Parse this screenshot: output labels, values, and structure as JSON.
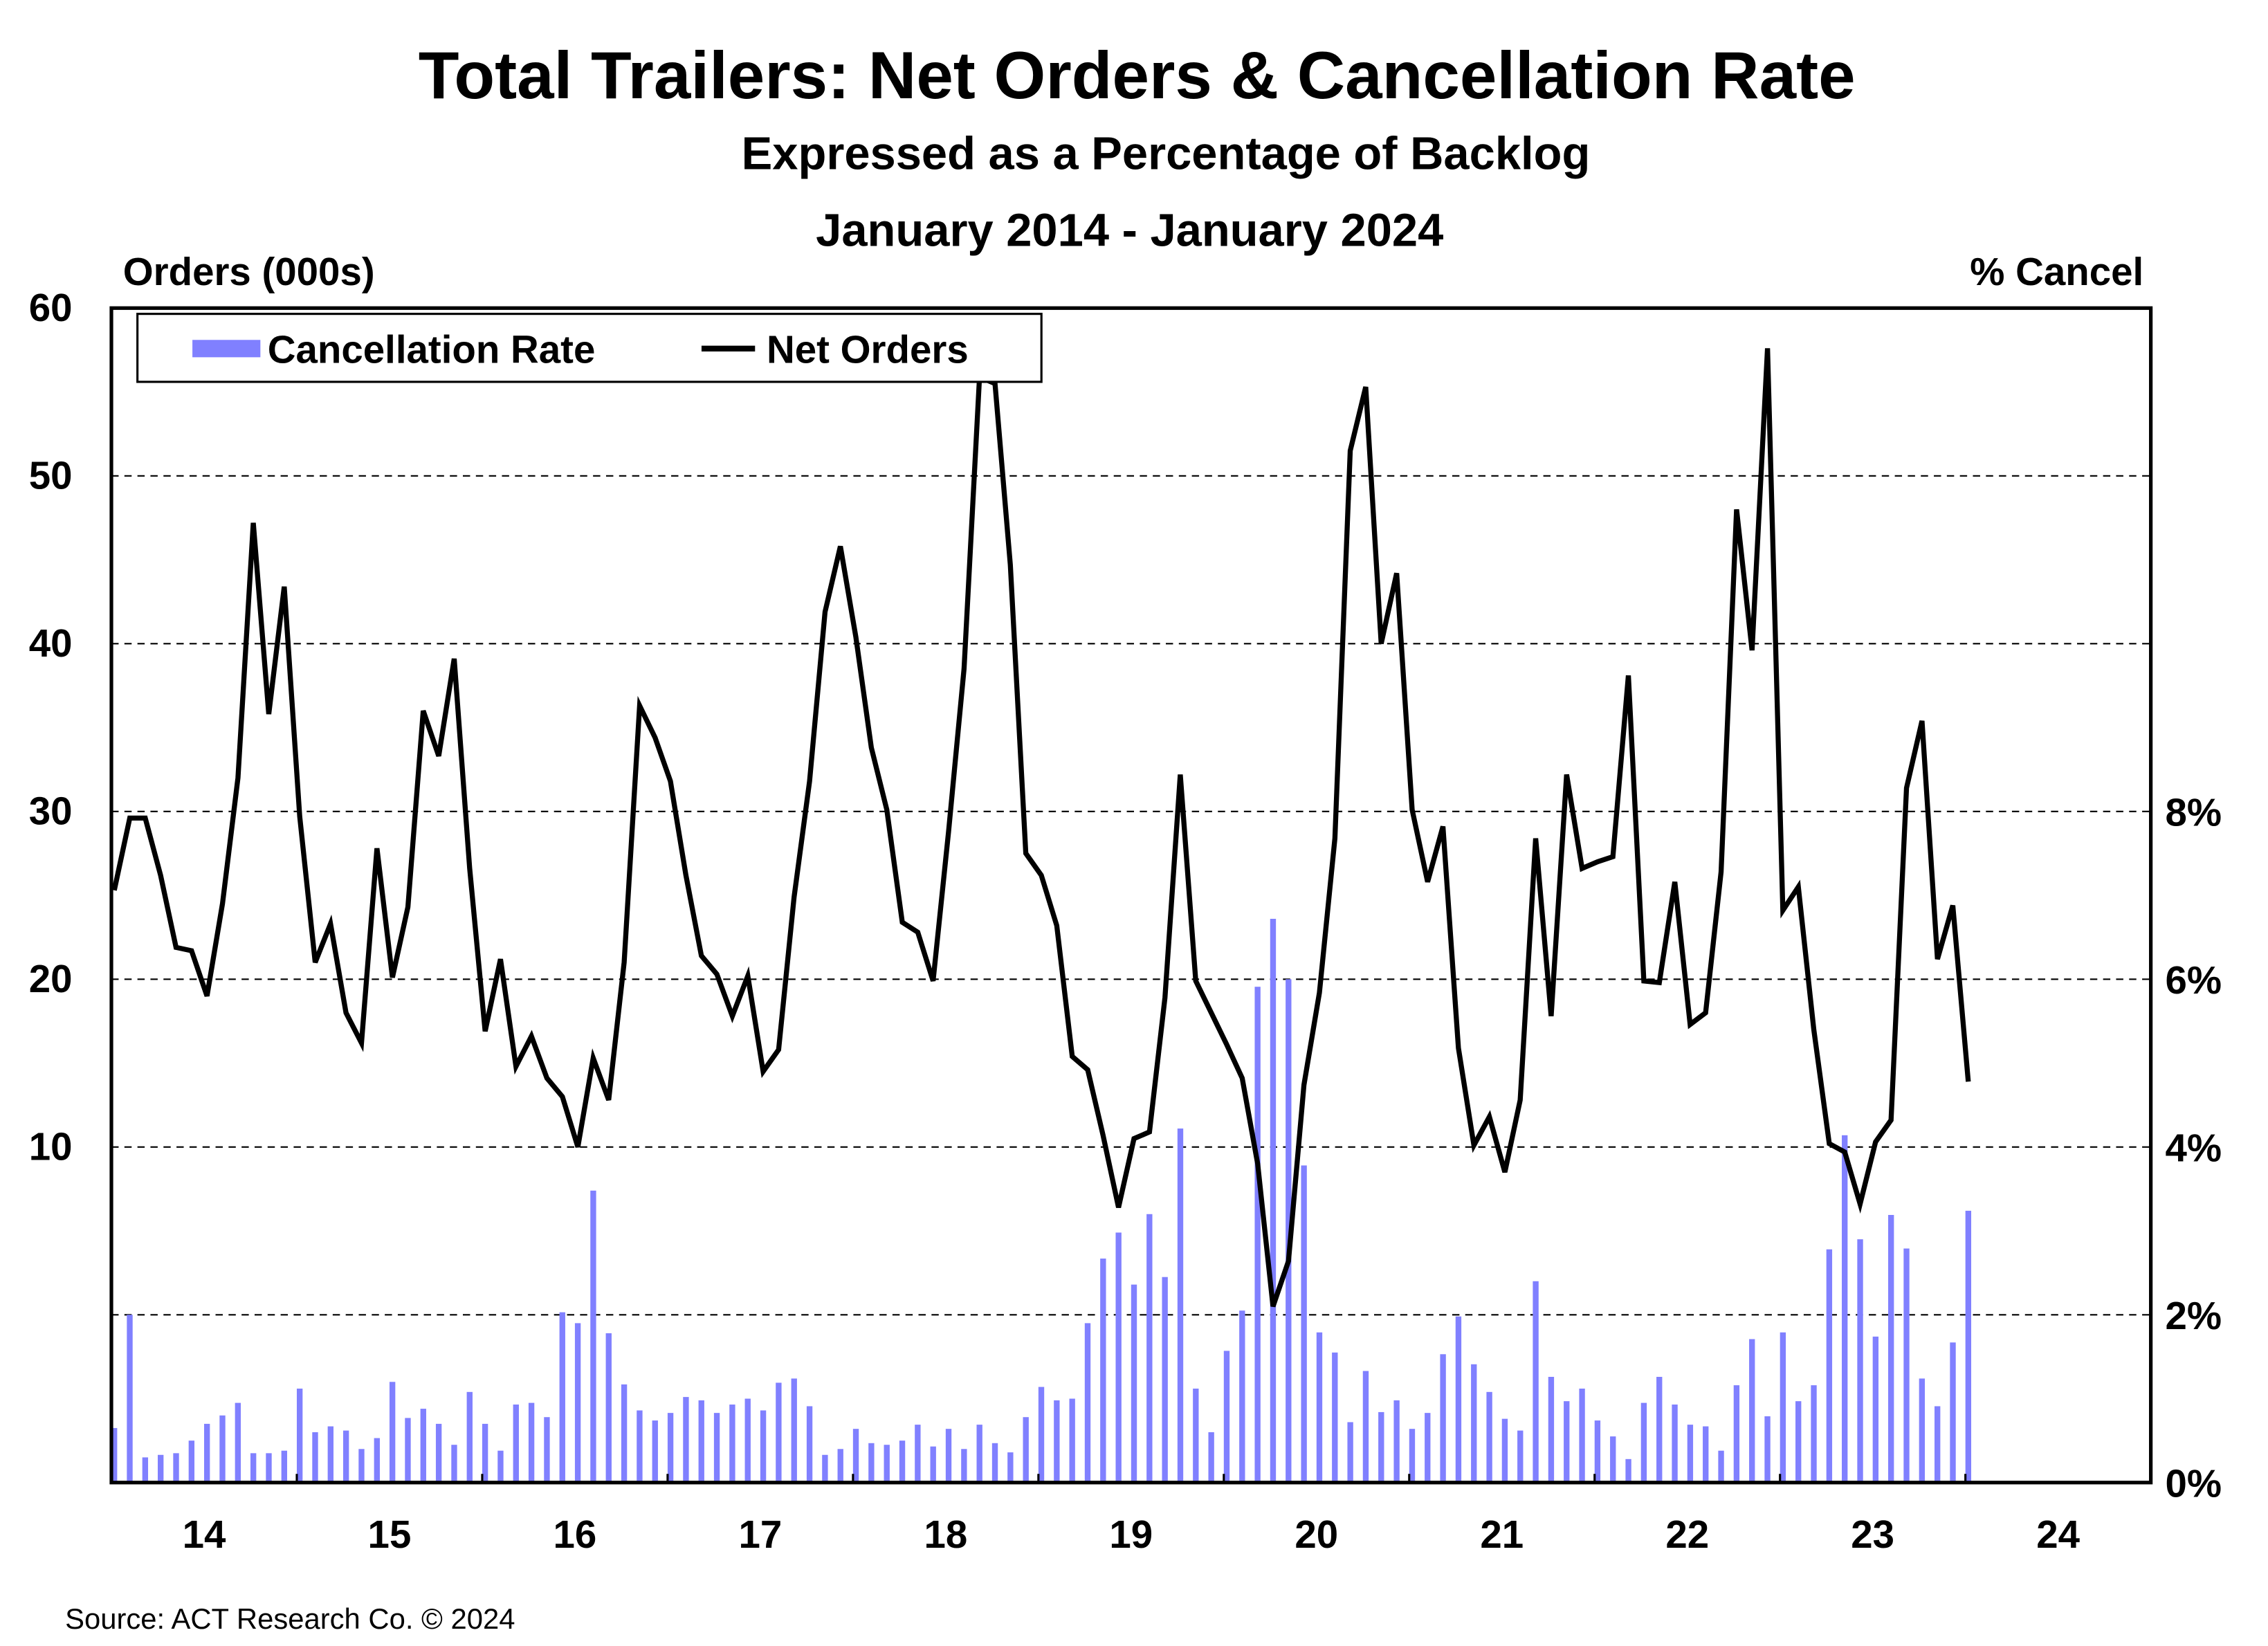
{
  "chart_data": {
    "type": "bar+line",
    "title": "Total Trailers: Net Orders & Cancellation Rate",
    "subtitle": "Expressed as a Percentage of Backlog",
    "date_range": "January 2014 - January 2024",
    "left_axis_label": "Orders (000s)",
    "right_axis_label": "% Cancel",
    "left_ylim": [
      -10,
      60
    ],
    "right_ylim": [
      0,
      14
    ],
    "left_ticks": [
      "60",
      "50",
      "40",
      "30",
      "20",
      "10"
    ],
    "left_tick_values": [
      60,
      50,
      40,
      30,
      20,
      10
    ],
    "right_ticks": [
      "8%",
      "6%",
      "4%",
      "2%",
      "0%"
    ],
    "right_tick_values": [
      8,
      6,
      4,
      2,
      0
    ],
    "x_ticks": [
      "14",
      "15",
      "16",
      "17",
      "18",
      "19",
      "20",
      "21",
      "22",
      "23",
      "24"
    ],
    "x_start": "2014-01",
    "x_end": "2024-12",
    "frequency": "monthly",
    "grid": "horizontal dashed",
    "legend_position": "top-left",
    "colors": {
      "cancellation_rate": "#8080FF",
      "net_orders": "#000000"
    },
    "series": [
      {
        "name": "Cancellation Rate",
        "type": "bar",
        "axis": "right",
        "unit": "%",
        "values": [
          0.65,
          2.0,
          0.3,
          0.33,
          0.35,
          0.5,
          0.7,
          0.8,
          0.95,
          0.35,
          0.35,
          0.38,
          1.12,
          0.6,
          0.67,
          0.62,
          0.4,
          0.53,
          1.2,
          0.77,
          0.88,
          0.7,
          0.45,
          1.08,
          0.7,
          0.38,
          0.93,
          0.95,
          0.78,
          2.03,
          1.9,
          3.48,
          1.78,
          1.17,
          0.86,
          0.74,
          0.83,
          1.02,
          0.98,
          0.83,
          0.93,
          1.0,
          0.86,
          1.19,
          1.24,
          0.91,
          0.33,
          0.4,
          0.64,
          0.47,
          0.45,
          0.5,
          0.69,
          0.43,
          0.64,
          0.4,
          0.69,
          0.47,
          0.36,
          0.78,
          1.14,
          0.98,
          1.0,
          1.9,
          2.67,
          2.98,
          2.36,
          3.2,
          2.45,
          4.22,
          1.12,
          0.6,
          1.57,
          2.05,
          5.91,
          6.72,
          6.0,
          3.78,
          1.79,
          1.55,
          0.72,
          1.33,
          0.84,
          0.98,
          0.64,
          0.83,
          1.53,
          1.98,
          1.41,
          1.08,
          0.76,
          0.62,
          2.4,
          1.26,
          0.97,
          1.12,
          0.74,
          0.55,
          0.28,
          0.95,
          1.26,
          0.93,
          0.69,
          0.67,
          0.38,
          1.16,
          1.71,
          0.79,
          1.79,
          0.97,
          1.16,
          2.78,
          4.14,
          2.9,
          1.74,
          3.19,
          2.79,
          1.24,
          0.91,
          1.67,
          3.24
        ]
      },
      {
        "name": "Net Orders",
        "type": "line",
        "axis": "left",
        "unit": "000s",
        "values": [
          25.3,
          29.6,
          29.6,
          26.2,
          21.9,
          21.7,
          19.0,
          24.5,
          32.0,
          47.2,
          35.8,
          43.4,
          29.7,
          21.0,
          23.3,
          18.0,
          16.2,
          27.8,
          20.1,
          24.3,
          36.0,
          33.3,
          39.1,
          26.6,
          16.9,
          21.2,
          14.8,
          16.6,
          14.1,
          13.0,
          10.0,
          15.3,
          12.8,
          21.0,
          36.3,
          34.4,
          31.8,
          26.2,
          21.4,
          20.3,
          17.8,
          20.2,
          14.5,
          15.8,
          24.9,
          31.8,
          41.9,
          45.8,
          40.4,
          33.8,
          30.1,
          23.4,
          22.8,
          19.9,
          28.8,
          38.5,
          55.9,
          55.5,
          44.7,
          27.5,
          26.2,
          23.2,
          15.4,
          14.6,
          10.7,
          6.4,
          10.5,
          10.9,
          18.9,
          32.2,
          19.9,
          18.0,
          16.1,
          14.1,
          9.0,
          0.5,
          3.2,
          13.7,
          19.2,
          28.4,
          51.5,
          55.3,
          40.0,
          44.2,
          30.1,
          25.8,
          29.1,
          15.9,
          10.1,
          11.8,
          8.5,
          12.8,
          28.4,
          17.8,
          32.2,
          26.6,
          27.0,
          27.3,
          38.1,
          19.9,
          19.8,
          25.8,
          17.3,
          18.0,
          26.4,
          48.0,
          39.6,
          57.6,
          24.1,
          25.5,
          17.0,
          10.2,
          9.7,
          6.6,
          10.3,
          11.6,
          31.4,
          35.4,
          21.2,
          24.4,
          13.9
        ]
      }
    ],
    "source": "Source: ACT Research Co. © 2024"
  }
}
